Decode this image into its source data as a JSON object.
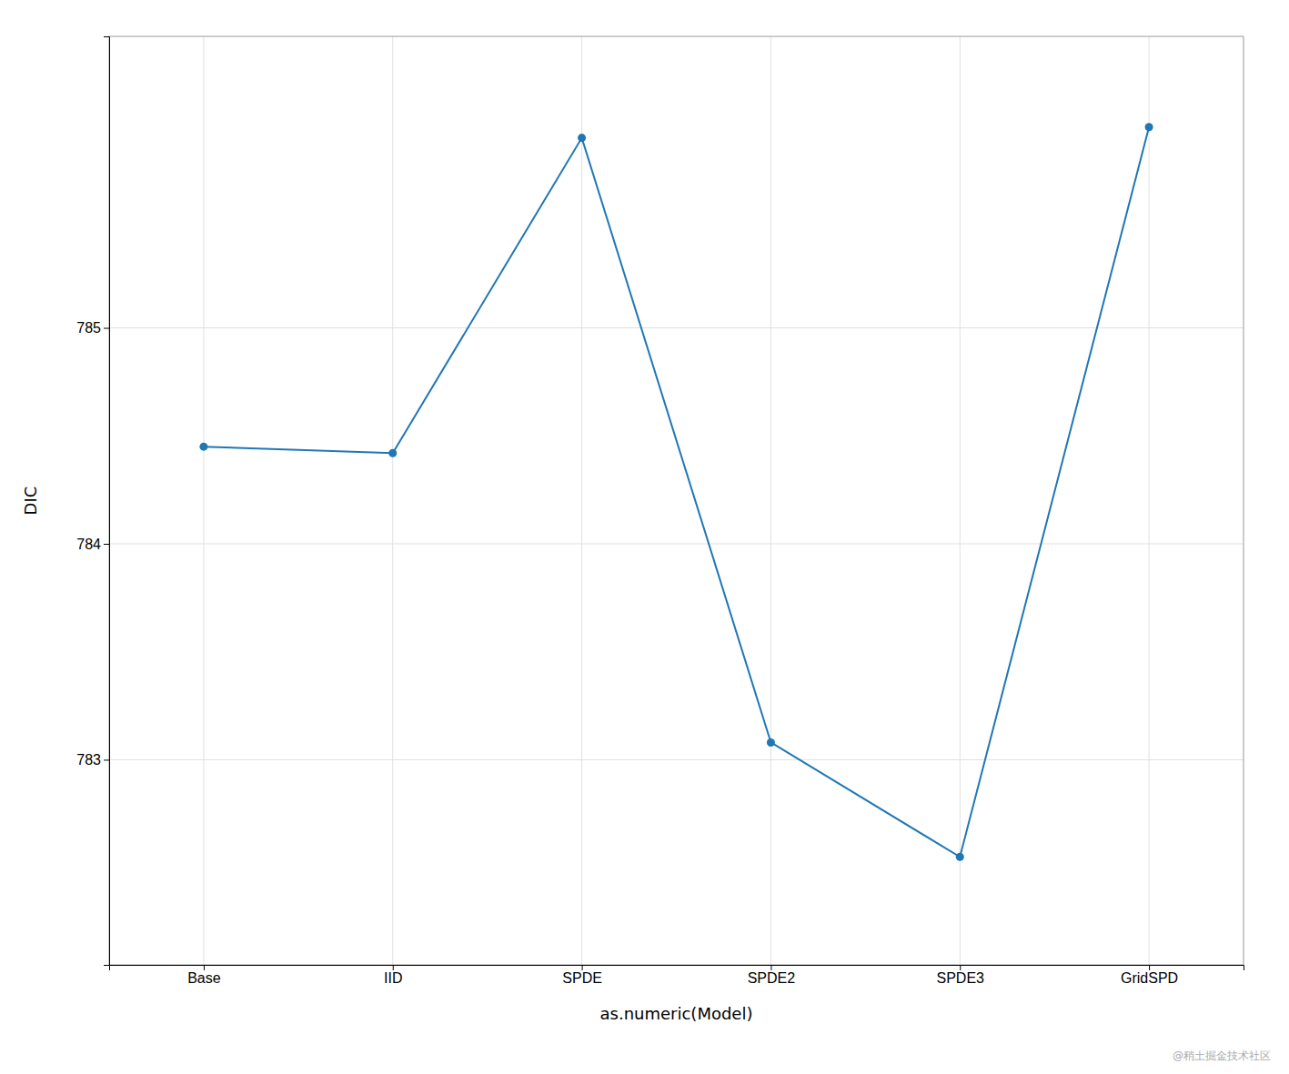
{
  "chart_data": {
    "type": "line",
    "x_label": "as.numeric(Model)",
    "y_label": "DIC",
    "categories": [
      "Base",
      "IID",
      "SPDE",
      "SPDE2",
      "SPDE3",
      "GridSPD"
    ],
    "values": [
      784.45,
      784.42,
      785.88,
      783.08,
      782.55,
      785.93
    ],
    "ylim": [
      782.05,
      786.35
    ],
    "yticks": [
      783,
      784,
      785
    ],
    "grid": true,
    "marker": "circle",
    "annotations": [
      {
        "text": "@稍土掘金技术社区"
      }
    ]
  }
}
